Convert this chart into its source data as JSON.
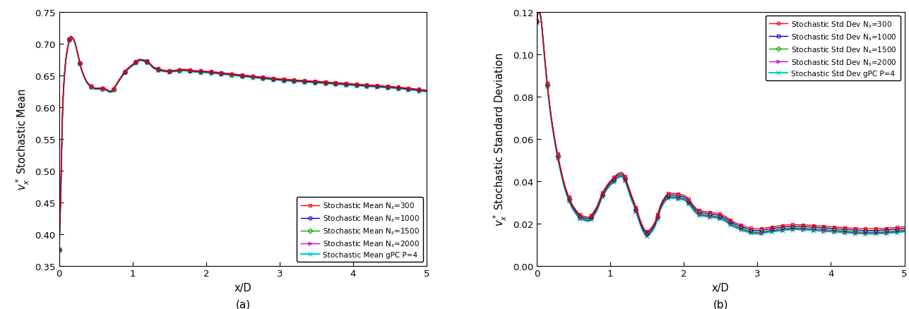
{
  "left_ylabel": "$v_x^*$ Stochastic Mean",
  "right_ylabel": "$v_x^*$ Stochastic Standard Deviation",
  "xlabel": "x/D",
  "xlim": [
    0,
    5
  ],
  "left_ylim": [
    0.35,
    0.75
  ],
  "left_yticks": [
    0.35,
    0.4,
    0.45,
    0.5,
    0.55,
    0.6,
    0.65,
    0.7,
    0.75
  ],
  "right_ylim": [
    0,
    0.12
  ],
  "right_yticks": [
    0,
    0.02,
    0.04,
    0.06,
    0.08,
    0.1,
    0.12
  ],
  "xticks": [
    0,
    1,
    2,
    3,
    4,
    5
  ],
  "label_a": "(a)",
  "label_b": "(b)",
  "colors": [
    "#FF0000",
    "#0000CD",
    "#00AA00",
    "#CC00CC",
    "#00CCCC"
  ],
  "markers": [
    "s",
    "o",
    "D",
    ">",
    "x"
  ],
  "lws": [
    1.0,
    1.0,
    1.0,
    1.0,
    1.5
  ],
  "left_legend_labels": [
    "Stochastic Mean N$_s$=300",
    "Stochastic Mean N$_s$=1000",
    "Stochastic Mean N$_s$=1500",
    "Stochastic Mean N$_s$=2000",
    "Stochastic Mean gPC P=4"
  ],
  "right_legend_labels": [
    "Stochastic Std Dev N$_s$=300",
    "Stochastic Std Dev N$_s$=1000",
    "Stochastic Std Dev N$_s$=1500",
    "Stochastic Std Dev N$_s$=2000",
    "Stochastic Std Dev gPC P=4"
  ],
  "mean_knots_x": [
    0.0,
    0.02,
    0.05,
    0.08,
    0.12,
    0.16,
    0.2,
    0.25,
    0.3,
    0.4,
    0.5,
    0.6,
    0.7,
    0.8,
    0.9,
    1.0,
    1.1,
    1.2,
    1.3,
    1.5,
    1.7,
    1.85,
    2.0,
    2.5,
    3.0,
    3.5,
    4.0,
    4.5,
    5.0
  ],
  "mean_knots_y": [
    0.375,
    0.45,
    0.6,
    0.66,
    0.695,
    0.71,
    0.705,
    0.685,
    0.66,
    0.635,
    0.628,
    0.628,
    0.623,
    0.638,
    0.655,
    0.665,
    0.673,
    0.67,
    0.66,
    0.655,
    0.657,
    0.655,
    0.654,
    0.648,
    0.642,
    0.638,
    0.634,
    0.63,
    0.624
  ],
  "std_knots_x": [
    0.0,
    0.02,
    0.04,
    0.06,
    0.08,
    0.1,
    0.15,
    0.2,
    0.3,
    0.4,
    0.5,
    0.6,
    0.7,
    0.8,
    0.9,
    1.0,
    1.15,
    1.3,
    1.5,
    1.6,
    1.7,
    1.8,
    2.0,
    2.2,
    2.5,
    2.7,
    3.0,
    3.2,
    3.5,
    4.0,
    4.5,
    5.0
  ],
  "std_knots_y": [
    0.115,
    0.12,
    0.119,
    0.115,
    0.108,
    0.1,
    0.082,
    0.068,
    0.048,
    0.034,
    0.026,
    0.022,
    0.021,
    0.025,
    0.033,
    0.038,
    0.042,
    0.03,
    0.014,
    0.018,
    0.028,
    0.032,
    0.031,
    0.024,
    0.022,
    0.018,
    0.015,
    0.016,
    0.017,
    0.016,
    0.015,
    0.016
  ],
  "mean_band_offsets": [
    0.003,
    0.002,
    0.001,
    0.0005,
    0.0
  ],
  "std_band_offsets": [
    0.003,
    0.002,
    0.001,
    0.0005,
    0.0
  ]
}
